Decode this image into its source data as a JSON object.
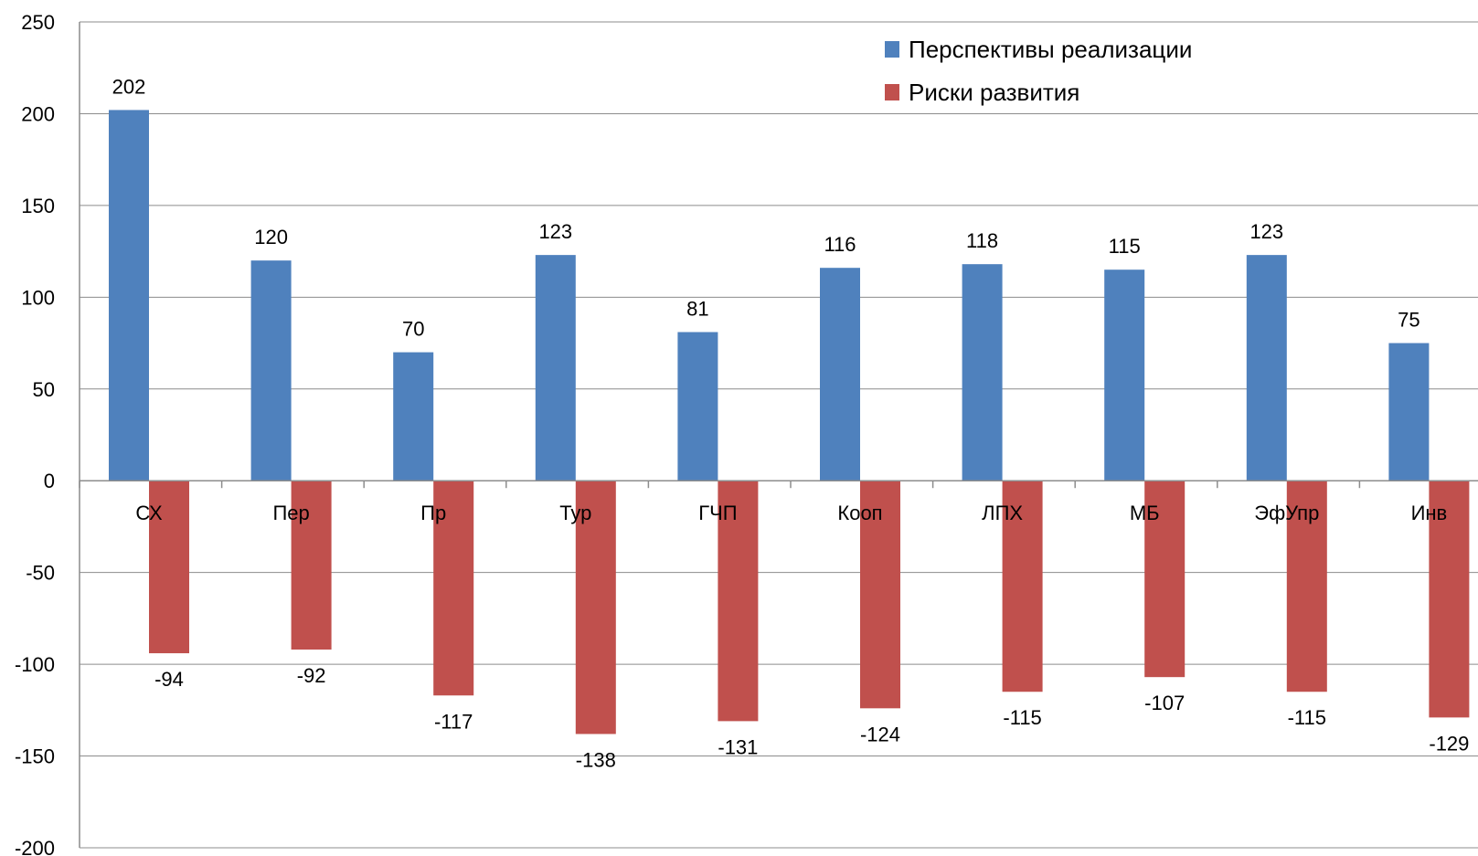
{
  "chart_data": {
    "type": "bar",
    "categories": [
      "СХ",
      "Пер",
      "Пр",
      "Тур",
      "ГЧП",
      "Кооп",
      "ЛПХ",
      "МБ",
      "ЭфУпр",
      "Инв"
    ],
    "series": [
      {
        "name": "Перспективы реализации",
        "color": "#4F81BD",
        "values": [
          202,
          120,
          70,
          123,
          81,
          116,
          118,
          115,
          123,
          75
        ]
      },
      {
        "name": "Риски развития",
        "color": "#C0504D",
        "values": [
          -94,
          -92,
          -117,
          -138,
          -131,
          -124,
          -115,
          -107,
          -115,
          -129
        ]
      }
    ],
    "ylim": [
      -200,
      250
    ],
    "yticks": [
      250,
      200,
      150,
      100,
      50,
      0,
      -50,
      -100,
      -150,
      -200
    ],
    "grid": true,
    "legend_position": "top-right"
  }
}
